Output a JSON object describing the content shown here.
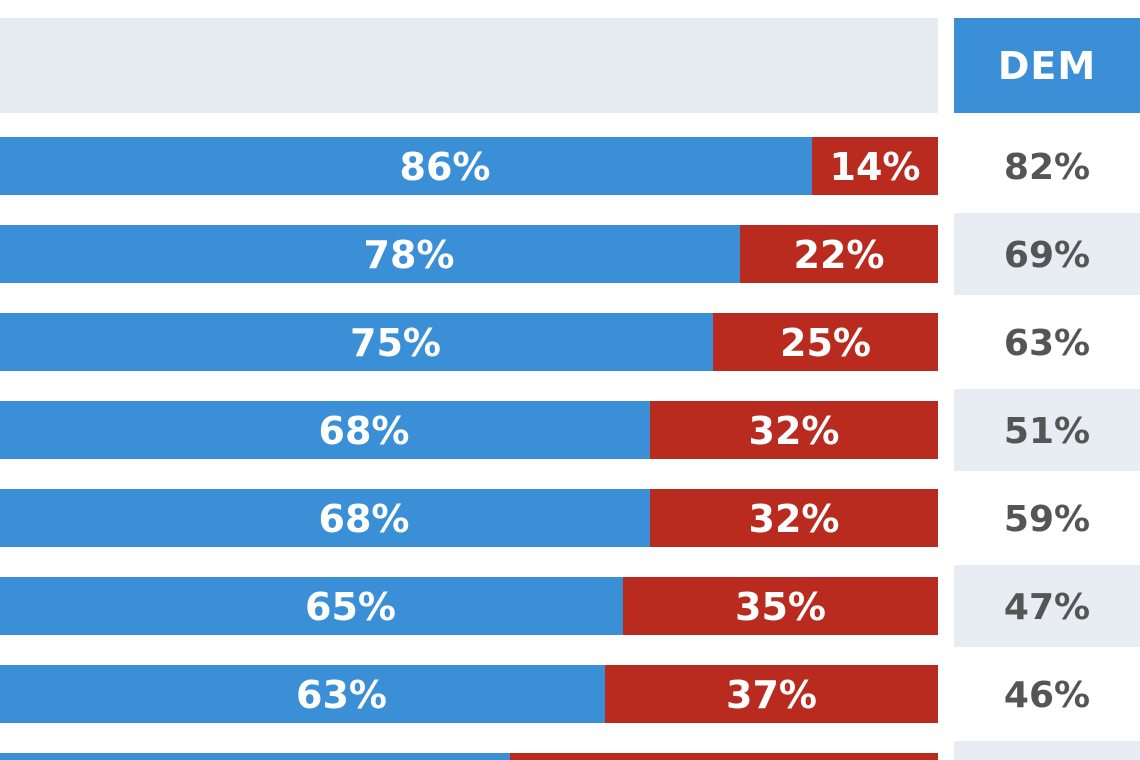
{
  "colors": {
    "dem": "#3a8fd6",
    "rep": "#b92b1e",
    "band": "#e6eaf1",
    "label": "#ffffff",
    "col_text": "#555555",
    "col_alt": "#e8ecf3"
  },
  "header": {
    "dem_column_label": "DEM"
  },
  "chart_data": {
    "type": "bar",
    "orientation": "horizontal",
    "stacked": true,
    "title": "",
    "xlabel": "",
    "ylabel": "",
    "xlim": [
      0,
      100
    ],
    "series": [
      {
        "name": "Blue",
        "values": [
          86,
          78,
          75,
          68,
          68,
          65,
          63
        ]
      },
      {
        "name": "Red",
        "values": [
          14,
          22,
          25,
          32,
          32,
          35,
          37
        ]
      }
    ],
    "dem_column": {
      "label": "DEM",
      "values": [
        82,
        69,
        63,
        51,
        59,
        47,
        46
      ]
    }
  }
}
